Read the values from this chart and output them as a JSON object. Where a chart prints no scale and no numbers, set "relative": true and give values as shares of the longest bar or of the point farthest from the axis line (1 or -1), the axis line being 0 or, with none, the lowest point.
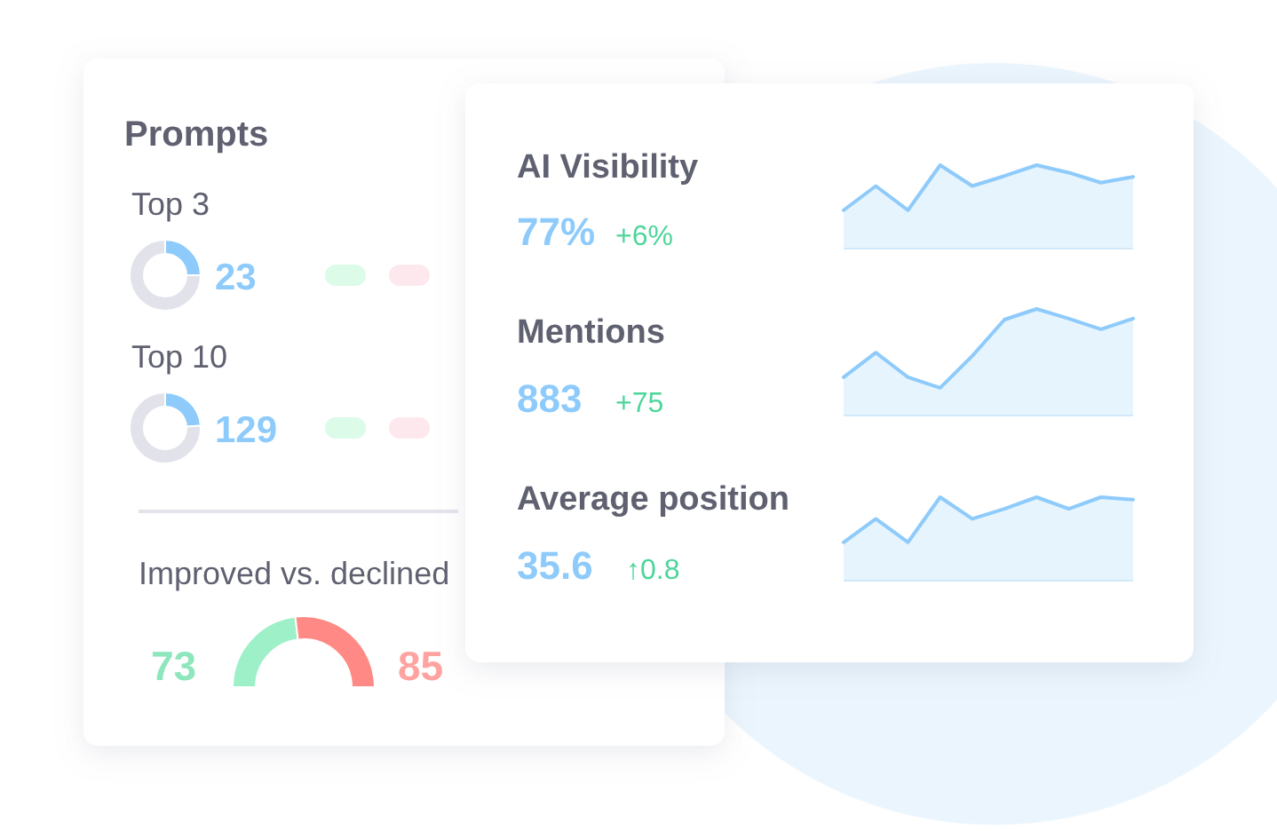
{
  "chart_data": [
    {
      "type": "donut",
      "title": "Prompts",
      "subtitle": "Top 3",
      "categories": [
        null,
        null
      ],
      "values": [
        25,
        75
      ],
      "colors": [
        "#8ecbfb",
        "#e1e2ea"
      ],
      "annotations": [
        "23"
      ]
    },
    {
      "type": "donut",
      "title": "Top 10",
      "categories": [
        null,
        null
      ],
      "values": [
        24,
        76
      ],
      "colors": [
        "#8ecbfb",
        "#e1e2ea"
      ],
      "annotations": [
        "129"
      ]
    },
    {
      "type": "donut",
      "title": "Improved vs. declined",
      "categories": [
        null,
        null
      ],
      "values": [
        73,
        85
      ],
      "colors": [
        "#9ef0c8",
        "#ff8a85"
      ],
      "data_labels": true
    },
    {
      "type": "area",
      "title": "AI Visibility",
      "relative": true,
      "categories": [
        null,
        null,
        null,
        null,
        null,
        null,
        null,
        null,
        null,
        null
      ],
      "values": [
        0.46,
        0.75,
        0.46,
        1,
        0.75,
        0.87,
        1,
        0.91,
        0.79,
        0.86
      ],
      "color": "#8ecbfb",
      "annotations": [
        "77%",
        "+6%"
      ]
    },
    {
      "type": "area",
      "title": "Mentions",
      "relative": true,
      "categories": [
        null,
        null,
        null,
        null,
        null,
        null,
        null,
        null,
        null,
        null
      ],
      "values": [
        0.36,
        0.59,
        0.36,
        0.26,
        0.56,
        0.9,
        1,
        0.91,
        0.81,
        0.91
      ],
      "color": "#8ecbfb",
      "annotations": [
        "883",
        "+75"
      ]
    },
    {
      "type": "area",
      "title": "Average position",
      "relative": true,
      "categories": [
        null,
        null,
        null,
        null,
        null,
        null,
        null,
        null,
        null,
        null
      ],
      "values": [
        0.46,
        0.74,
        0.46,
        1,
        0.74,
        0.86,
        1,
        0.86,
        1,
        0.97
      ],
      "color": "#8ecbfb",
      "annotations": [
        "35.6",
        "↑0.8"
      ]
    }
  ]
}
